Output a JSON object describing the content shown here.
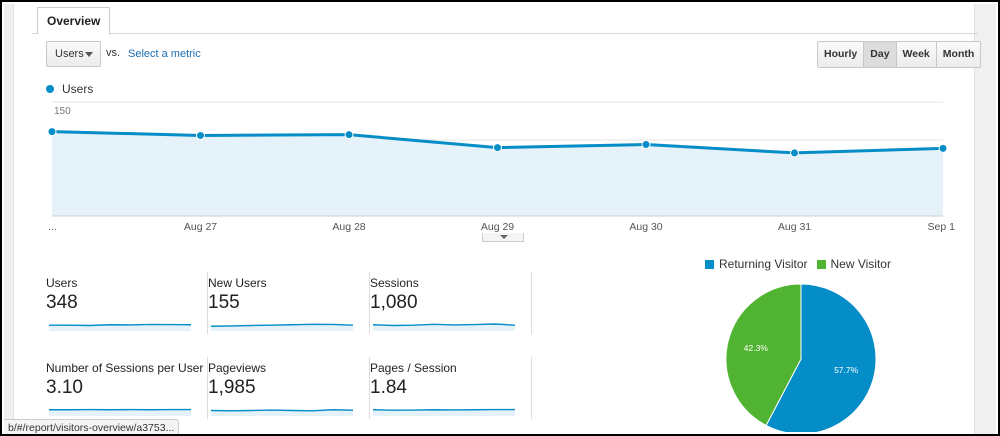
{
  "tabs": [
    {
      "label": "Overview"
    }
  ],
  "controls": {
    "metric_select": "Users",
    "vs_label": "vs.",
    "select_metric_link": "Select a metric",
    "range_buttons": [
      {
        "label": "Hourly",
        "active": false
      },
      {
        "label": "Day",
        "active": true
      },
      {
        "label": "Week",
        "active": false
      },
      {
        "label": "Month",
        "active": false
      }
    ]
  },
  "chart_data": [
    {
      "type": "area",
      "series": [
        {
          "name": "Users",
          "values": [
            111,
            106,
            107,
            90,
            94,
            83,
            89
          ],
          "color": "#058dc7"
        }
      ],
      "x": [
        "...",
        "Aug 27",
        "Aug 28",
        "Aug 29",
        "Aug 30",
        "Aug 31",
        "Sep 1"
      ],
      "y_ticks": [
        "150",
        "100",
        "50"
      ],
      "ylim": [
        0,
        150
      ],
      "grid": true,
      "legend": "top-left"
    },
    {
      "type": "pie",
      "categories": [
        "Returning Visitor",
        "New Visitor"
      ],
      "values": [
        57.7,
        42.3
      ],
      "labels": [
        "57.7%",
        "42.3%"
      ],
      "colors": [
        "#058dc7",
        "#50b432"
      ],
      "legend": "top"
    }
  ],
  "stats": [
    {
      "label": "Users",
      "value": "348",
      "trend": [
        0.52,
        0.52,
        0.5,
        0.55,
        0.54,
        0.57,
        0.56,
        0.55
      ]
    },
    {
      "label": "New Users",
      "value": "155",
      "trend": [
        0.45,
        0.47,
        0.5,
        0.52,
        0.55,
        0.58,
        0.57,
        0.52
      ]
    },
    {
      "label": "Sessions",
      "value": "1,080",
      "trend": [
        0.55,
        0.5,
        0.52,
        0.58,
        0.54,
        0.56,
        0.6,
        0.52
      ]
    },
    {
      "label": "Number of Sessions per User",
      "value": "3.10",
      "trend": [
        0.55,
        0.55,
        0.56,
        0.55,
        0.56,
        0.55,
        0.56,
        0.56
      ]
    },
    {
      "label": "Pageviews",
      "value": "1,985",
      "trend": [
        0.5,
        0.48,
        0.5,
        0.53,
        0.5,
        0.48,
        0.55,
        0.52
      ]
    },
    {
      "label": "Pages / Session",
      "value": "1.84",
      "trend": [
        0.55,
        0.52,
        0.53,
        0.55,
        0.54,
        0.55,
        0.56,
        0.56
      ]
    }
  ],
  "status_url": "b/#/report/visitors-overview/a3753..."
}
